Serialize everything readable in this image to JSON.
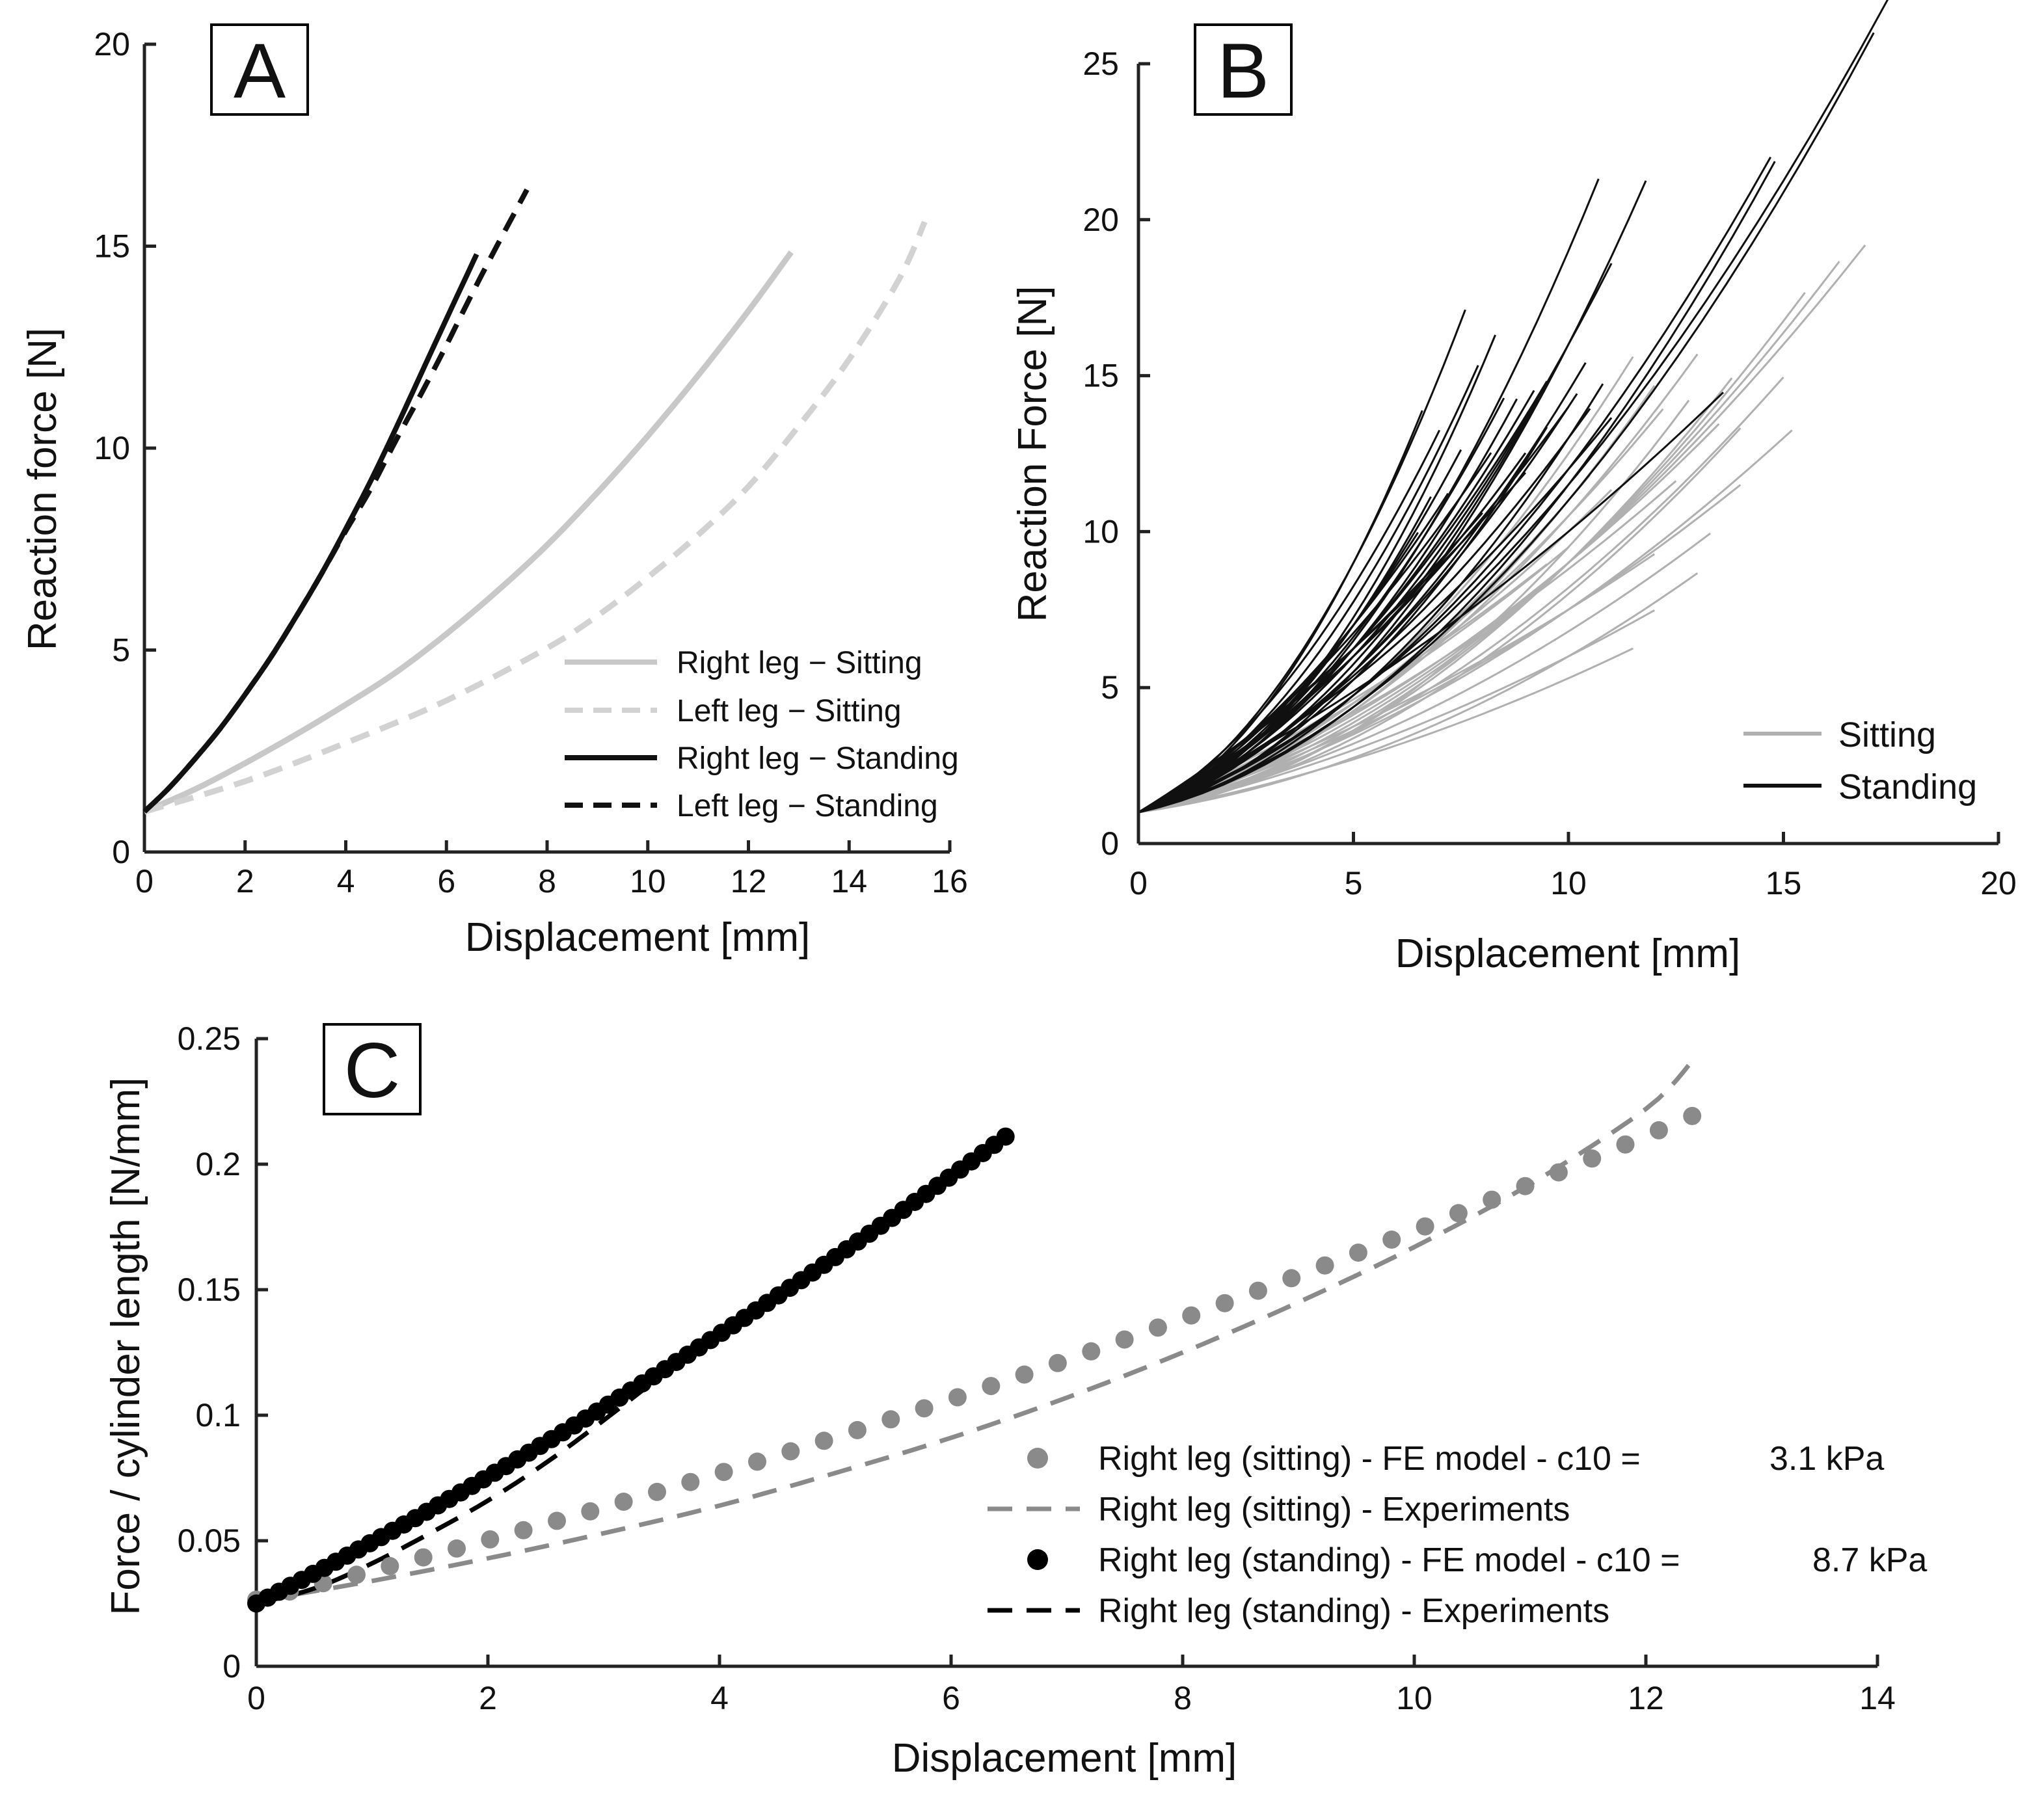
{
  "chart_data": [
    {
      "panel": "A",
      "type": "line",
      "panel_label": "A",
      "xlabel": "Displacement [mm]",
      "ylabel": "Reaction force [N]",
      "xlim": [
        0,
        16
      ],
      "ylim": [
        0,
        20
      ],
      "xticks": [
        0,
        2,
        4,
        6,
        8,
        10,
        12,
        14,
        16
      ],
      "yticks": [
        0,
        5,
        10,
        15,
        20
      ],
      "legend_position": "bottom-right",
      "series": [
        {
          "name": "Right leg − Sitting",
          "color": "#c8c8c8",
          "dash": "solid",
          "x": [
            0,
            1,
            2,
            3,
            4,
            5,
            6,
            7,
            8,
            9,
            10,
            11,
            12,
            12.85
          ],
          "y": [
            1.0,
            1.55,
            2.2,
            2.9,
            3.65,
            4.45,
            5.4,
            6.45,
            7.6,
            8.9,
            10.3,
            11.8,
            13.4,
            14.85
          ]
        },
        {
          "name": "Left leg − Sitting",
          "color": "#d2d2d2",
          "dash": "dashed",
          "x": [
            0,
            2,
            4,
            6,
            8,
            9,
            10,
            11,
            12,
            13,
            14,
            15,
            15.5
          ],
          "y": [
            1.0,
            1.75,
            2.7,
            3.75,
            5.05,
            5.85,
            6.8,
            7.85,
            9.05,
            10.55,
            12.2,
            14.2,
            15.6
          ]
        },
        {
          "name": "Right leg − Standing",
          "color": "#111111",
          "dash": "solid",
          "x": [
            0,
            0.5,
            1,
            1.5,
            2,
            2.5,
            3,
            3.5,
            4,
            4.5,
            5,
            5.5,
            6,
            6.6
          ],
          "y": [
            1.0,
            1.6,
            2.3,
            3.05,
            3.9,
            4.8,
            5.8,
            6.85,
            8.0,
            9.2,
            10.5,
            11.85,
            13.2,
            14.8
          ]
        },
        {
          "name": "Left leg − Standing",
          "color": "#111111",
          "dash": "dashed",
          "x": [
            0,
            0.5,
            1,
            1.5,
            2,
            2.5,
            3,
            3.5,
            4,
            4.5,
            5,
            5.5,
            6,
            6.5,
            7,
            7.6
          ],
          "y": [
            1.0,
            1.6,
            2.3,
            3.05,
            3.9,
            4.8,
            5.8,
            6.85,
            7.95,
            9.0,
            10.2,
            11.35,
            12.55,
            13.8,
            15.0,
            16.4
          ]
        }
      ]
    },
    {
      "panel": "B",
      "type": "line",
      "panel_label": "B",
      "xlabel": "Displacement [mm]",
      "ylabel": "Reaction Force [N]",
      "xlim": [
        0,
        20
      ],
      "ylim": [
        0,
        25
      ],
      "xticks": [
        0,
        5,
        10,
        15,
        20
      ],
      "yticks": [
        0,
        5,
        10,
        15,
        20,
        25
      ],
      "legend_position": "bottom-right",
      "note": "Many individual curves, each approximated as F = 1 + a*x + b*x^2 up to end displacement xe",
      "groups": [
        {
          "name": "Sitting",
          "color": "#b0b0b0",
          "curves": [
            [
              0.25,
              0.018,
              11.5
            ],
            [
              0.2,
              0.03,
              13.0
            ],
            [
              0.3,
              0.02,
              12.0
            ],
            [
              0.3,
              0.028,
              13.3
            ],
            [
              0.25,
              0.045,
              14.0
            ],
            [
              0.35,
              0.03,
              15.2
            ],
            [
              0.3,
              0.042,
              15.0
            ],
            [
              0.4,
              0.025,
              14.0
            ],
            [
              0.3,
              0.05,
              15.5
            ],
            [
              0.35,
              0.045,
              16.3
            ],
            [
              0.4,
              0.04,
              16.9
            ],
            [
              0.45,
              0.035,
              13.5
            ],
            [
              0.5,
              0.028,
              12.5
            ],
            [
              0.25,
              0.055,
              13.8
            ],
            [
              0.35,
              0.06,
              13.0
            ],
            [
              0.5,
              0.04,
              11.0
            ],
            [
              0.45,
              0.05,
              12.2
            ],
            [
              0.3,
              0.07,
              12.0
            ],
            [
              0.55,
              0.03,
              10.0
            ],
            [
              0.4,
              0.06,
              10.5
            ],
            [
              0.6,
              0.025,
              9.5
            ],
            [
              0.35,
              0.08,
              11.5
            ],
            [
              0.2,
              0.065,
              12.8
            ],
            [
              0.45,
              0.02,
              12.0
            ]
          ]
        },
        {
          "name": "Standing",
          "color": "#101010",
          "curves": [
            [
              0.4,
              0.14,
              10.7
            ],
            [
              0.3,
              0.12,
              11.8
            ],
            [
              0.5,
              0.1,
              11.0
            ],
            [
              0.6,
              0.2,
              7.6
            ],
            [
              0.5,
              0.22,
              6.6
            ],
            [
              0.7,
              0.15,
              7.0
            ],
            [
              0.35,
              0.18,
              8.3
            ],
            [
              0.45,
              0.12,
              8.8
            ],
            [
              0.55,
              0.16,
              7.9
            ],
            [
              0.6,
              0.09,
              9.5
            ],
            [
              0.4,
              0.07,
              14.7
            ],
            [
              0.35,
              0.065,
              17.1
            ],
            [
              0.45,
              0.06,
              18.0
            ],
            [
              0.3,
              0.075,
              14.8
            ],
            [
              0.5,
              0.08,
              10.2
            ],
            [
              0.55,
              0.065,
              10.5
            ],
            [
              0.6,
              0.05,
              11.0
            ],
            [
              0.35,
              0.1,
              9.5
            ],
            [
              0.65,
              0.07,
              9.0
            ],
            [
              0.4,
              0.11,
              9.3
            ],
            [
              0.5,
              0.125,
              8.5
            ],
            [
              0.7,
              0.06,
              10.0
            ],
            [
              0.45,
              0.09,
              10.4
            ],
            [
              0.8,
              0.05,
              8.0
            ],
            [
              0.3,
              0.09,
              10.8
            ],
            [
              0.55,
              0.1,
              9.2
            ],
            [
              0.85,
              0.04,
              9.0
            ],
            [
              0.6,
              0.12,
              6.5
            ],
            [
              0.75,
              0.08,
              8.2
            ],
            [
              0.5,
              0.14,
              7.5
            ],
            [
              0.4,
              0.16,
              6.8
            ],
            [
              0.7,
              0.1,
              7.2
            ],
            [
              0.65,
              0.025,
              13.6
            ]
          ]
        }
      ]
    },
    {
      "panel": "C",
      "type": "scatter",
      "panel_label": "C",
      "xlabel": "Displacement [mm]",
      "ylabel": "Force / cylinder length [N/mm]",
      "xlim": [
        0,
        14
      ],
      "ylim": [
        0,
        0.25
      ],
      "xticks": [
        0,
        2,
        4,
        6,
        8,
        10,
        12,
        14
      ],
      "yticks": [
        0,
        0.05,
        0.1,
        0.15,
        0.2,
        0.25
      ],
      "ytick_labels": [
        "0",
        "0.05",
        "0.1",
        "0.15",
        "0.2",
        "0.25"
      ],
      "legend_position": "bottom-right",
      "series": [
        {
          "name": "Right leg (sitting) - FE model - c10 =",
          "value_label": "3.1 kPa",
          "kind": "markers",
          "color": "#8a8a8a",
          "x_start": 0,
          "x_end": 12.4,
          "n": 44,
          "y_func_coeffs": [
            0.0265,
            0.0112,
            0.00035
          ]
        },
        {
          "name": "Right leg (sitting) - Experiments",
          "kind": "dashed",
          "color": "#8a8a8a",
          "x": [
            0,
            1,
            2,
            3,
            4,
            5,
            6,
            7,
            8,
            9,
            10,
            11,
            12,
            12.4
          ],
          "y": [
            0.026,
            0.034,
            0.043,
            0.053,
            0.064,
            0.077,
            0.091,
            0.107,
            0.125,
            0.145,
            0.167,
            0.192,
            0.222,
            0.241
          ]
        },
        {
          "name": "Right leg (standing) - FE model - c10 =",
          "value_label": "8.7 kPa",
          "kind": "markers",
          "color": "#000000",
          "x_start": 0,
          "x_end": 6.47,
          "n": 67,
          "y_func_coeffs": [
            0.025,
            0.0237,
            0.00078
          ]
        },
        {
          "name": "Right leg (standing) - Experiments",
          "kind": "dashed",
          "color": "#000000",
          "x": [
            0,
            0.5,
            1,
            1.5,
            2,
            2.5,
            3,
            3.5,
            3.7
          ],
          "y": [
            0.025,
            0.031,
            0.041,
            0.053,
            0.066,
            0.081,
            0.098,
            0.116,
            0.124
          ]
        }
      ]
    }
  ]
}
